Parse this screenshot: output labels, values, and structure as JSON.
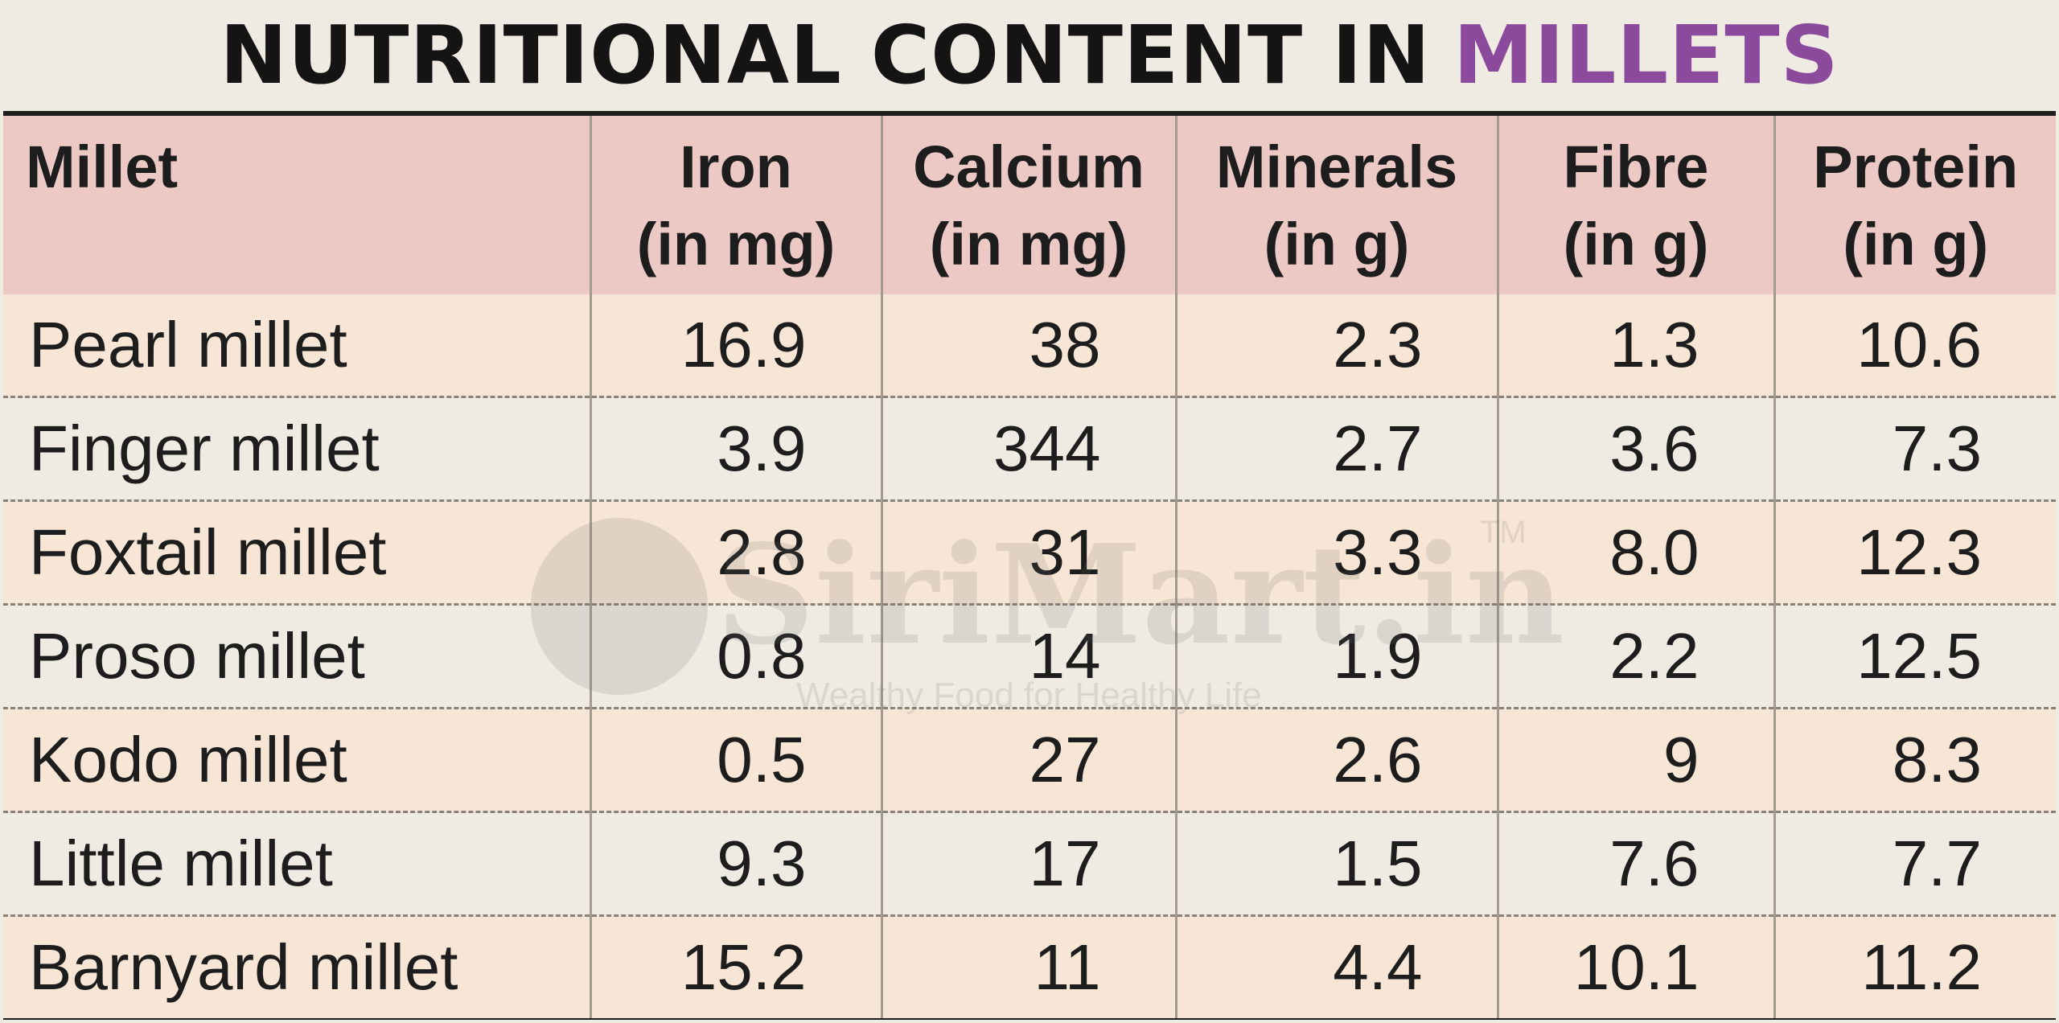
{
  "title": {
    "main": "NUTRITIONAL CONTENT IN",
    "accent": "MILLETS",
    "accent_color": "#8b4a9c"
  },
  "watermark": {
    "brand": "SiriMart.in",
    "trademark": "TM",
    "tagline": "Wealthy Food for Healthy Life"
  },
  "colors": {
    "header_bg": "#ecc9c5",
    "row_odd_bg": "#f7e6d5",
    "row_even_bg": "#efebe3"
  },
  "chart_data": {
    "type": "table",
    "title": "NUTRITIONAL CONTENT IN MILLETS",
    "columns": [
      {
        "line1": "Millet",
        "line2": ""
      },
      {
        "line1": "Iron",
        "line2": "(in mg)"
      },
      {
        "line1": "Calcium",
        "line2": "(in mg)"
      },
      {
        "line1": "Minerals",
        "line2": "(in g)"
      },
      {
        "line1": "Fibre",
        "line2": "(in g)"
      },
      {
        "line1": "Protein",
        "line2": "(in g)"
      }
    ],
    "rows": [
      {
        "name": "Pearl millet",
        "values": [
          "16.9",
          "38",
          "2.3",
          "1.3",
          "10.6"
        ]
      },
      {
        "name": "Finger millet",
        "values": [
          "3.9",
          "344",
          "2.7",
          "3.6",
          "7.3"
        ]
      },
      {
        "name": "Foxtail millet",
        "values": [
          "2.8",
          "31",
          "3.3",
          "8.0",
          "12.3"
        ]
      },
      {
        "name": "Proso millet",
        "values": [
          "0.8",
          "14",
          "1.9",
          "2.2",
          "12.5"
        ]
      },
      {
        "name": "Kodo millet",
        "values": [
          "0.5",
          "27",
          "2.6",
          "9",
          "8.3"
        ]
      },
      {
        "name": "Little millet",
        "values": [
          "9.3",
          "17",
          "1.5",
          "7.6",
          "7.7"
        ]
      },
      {
        "name": "Barnyard millet",
        "values": [
          "15.2",
          "11",
          "4.4",
          "10.1",
          "11.2"
        ]
      }
    ]
  }
}
